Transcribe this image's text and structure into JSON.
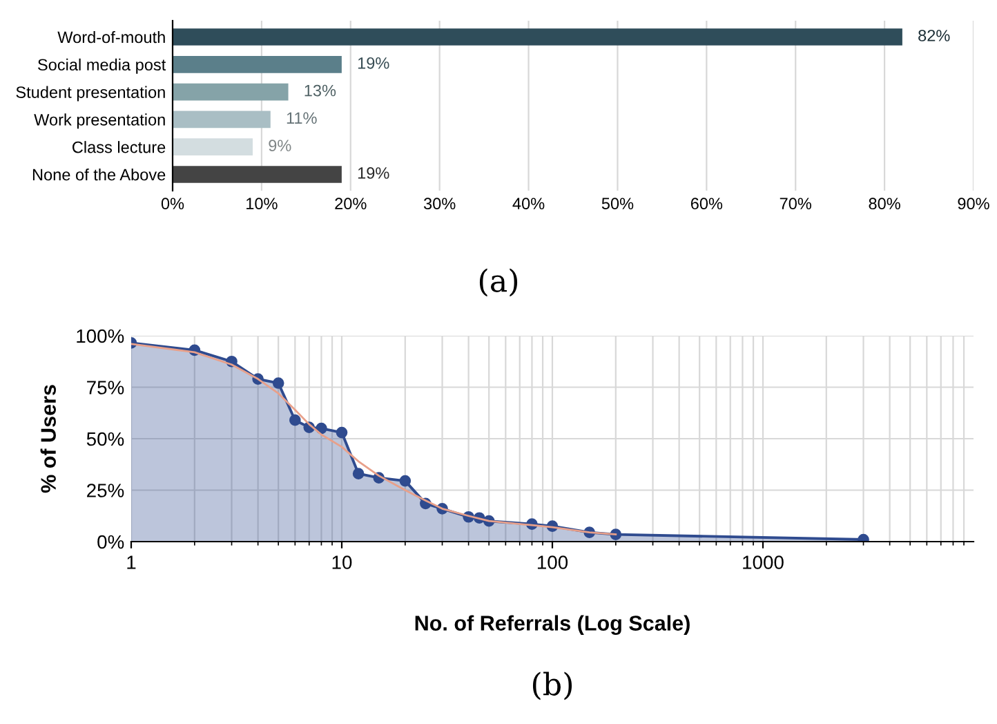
{
  "chart_data": [
    {
      "type": "bar",
      "orientation": "horizontal",
      "categories": [
        "Word-of-mouth",
        "Social media post",
        "Student presentation",
        "Work presentation",
        "Class lecture",
        "None of the Above"
      ],
      "values": [
        82,
        19,
        13,
        11,
        9,
        19
      ],
      "colors": [
        "#2f4d5a",
        "#5b7f8a",
        "#85a3a8",
        "#a9bec4",
        "#d3dde0",
        "#444444"
      ],
      "value_labels": [
        "82%",
        "19%",
        "13%",
        "11%",
        "9%",
        "19%"
      ],
      "xlim": [
        0,
        90
      ],
      "xticks": [
        {
          "value": 0,
          "label": "0%"
        },
        {
          "value": 10,
          "label": "10%"
        },
        {
          "value": 20,
          "label": "20%"
        },
        {
          "value": 30,
          "label": "30%"
        },
        {
          "value": 40,
          "label": "40%"
        },
        {
          "value": 50,
          "label": "50%"
        },
        {
          "value": 60,
          "label": "60%"
        },
        {
          "value": 70,
          "label": "70%"
        },
        {
          "value": 80,
          "label": "80%"
        },
        {
          "value": 90,
          "label": "90%"
        }
      ],
      "grid": "x",
      "legend": false,
      "annotations": [
        "(a)"
      ]
    },
    {
      "type": "area",
      "log": "x",
      "xlabel": "No. of Referrals (Log Scale)",
      "ylabel": "% of Users",
      "series": [
        {
          "type": "area",
          "color": "#2f4b8f",
          "marker": "circle",
          "x": [
            1,
            2,
            3,
            4,
            5,
            6,
            7,
            8,
            10,
            12,
            15,
            20,
            25,
            30,
            40,
            45,
            50,
            80,
            100,
            150,
            200,
            3000
          ],
          "values": [
            96.5,
            93,
            87.5,
            79,
            77,
            59,
            55.5,
            55,
            53,
            33,
            31,
            29.5,
            18.5,
            16,
            12,
            11.5,
            10,
            8.5,
            7.5,
            4.5,
            3.5,
            1
          ]
        },
        {
          "type": "line",
          "color": "#e8a08a",
          "marker": "none",
          "x": [
            1,
            2,
            3,
            4,
            5,
            6,
            7,
            8,
            10,
            12,
            15,
            20,
            25,
            30,
            40,
            50,
            80,
            100,
            150,
            200
          ],
          "values": [
            96,
            92,
            86,
            79,
            72,
            64,
            57,
            52,
            46,
            39,
            32,
            25,
            20,
            16,
            12.5,
            10,
            8,
            7,
            4.5,
            3.5
          ]
        }
      ],
      "xlim": [
        1,
        10000
      ],
      "xticks": [
        1,
        10,
        100,
        1000
      ],
      "ylim": [
        0,
        100
      ],
      "yticks": [
        {
          "value": 0,
          "label": "0%"
        },
        {
          "value": 25,
          "label": "25%"
        },
        {
          "value": 50,
          "label": "50%"
        },
        {
          "value": 75,
          "label": "75%"
        },
        {
          "value": 100,
          "label": "100%"
        }
      ],
      "grid": true,
      "legend": false,
      "annotations": [
        "(b)"
      ]
    }
  ]
}
